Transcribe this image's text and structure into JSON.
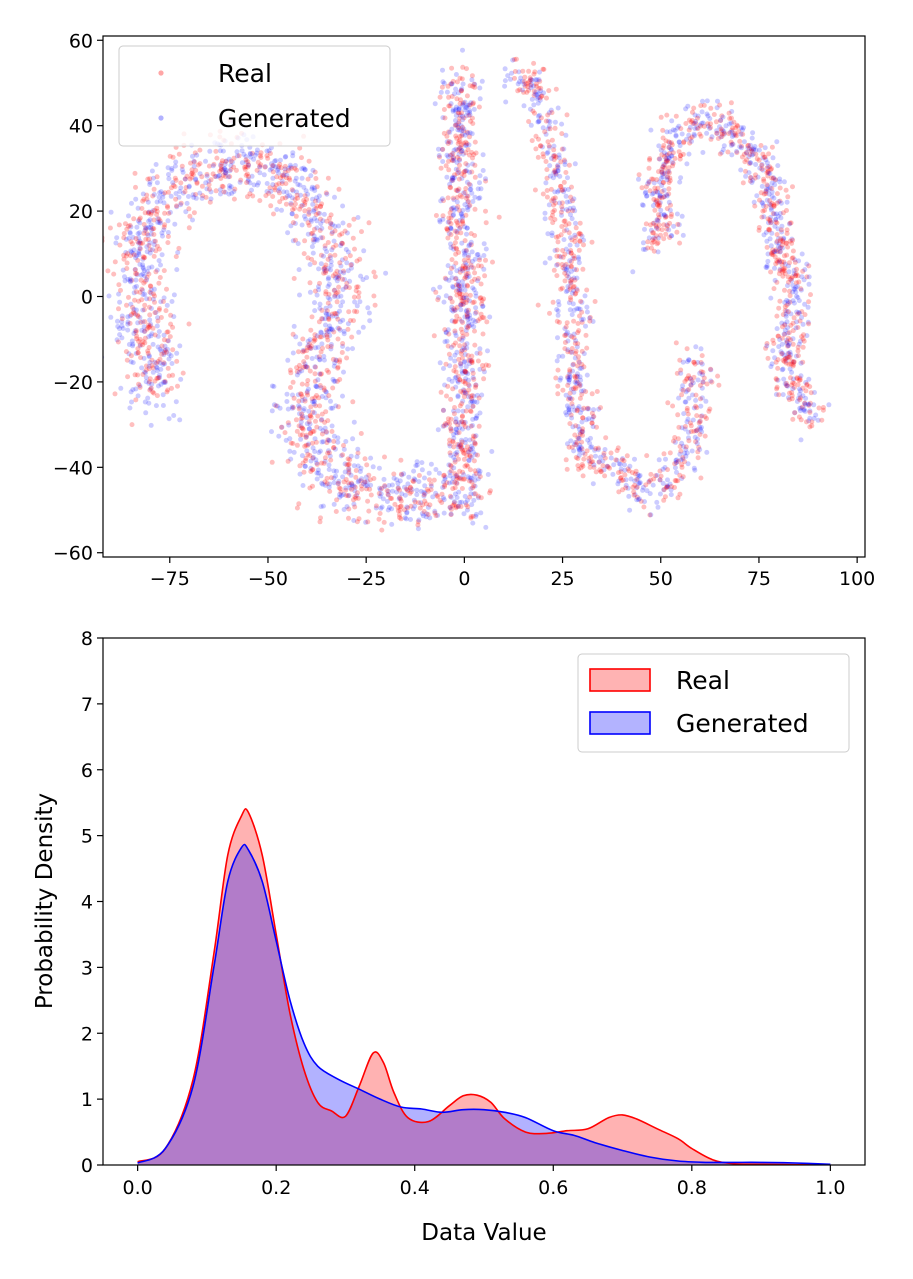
{
  "chart_data": [
    {
      "type": "scatter",
      "title": "",
      "xlabel": "",
      "ylabel": "",
      "xlim": [
        -92,
        102
      ],
      "ylim": [
        -61,
        61
      ],
      "xticks": [
        -75,
        -50,
        -25,
        0,
        25,
        50,
        75,
        100
      ],
      "yticks": [
        -60,
        -40,
        -20,
        0,
        20,
        40,
        60
      ],
      "xtick_labels": [
        "−75",
        "−50",
        "−25",
        "0",
        "25",
        "50",
        "75",
        "100"
      ],
      "ytick_labels": [
        "−60",
        "−40",
        "−20",
        "0",
        "20",
        "40",
        "60"
      ],
      "legend": {
        "position": "top-left",
        "entries": [
          "Real",
          "Generated"
        ]
      },
      "series": [
        {
          "name": "Real",
          "color": "#ff0000",
          "alpha": 0.25
        },
        {
          "name": "Generated",
          "color": "#0000ff",
          "alpha": 0.2
        }
      ],
      "clusters": [
        {
          "name": "left-arc",
          "path": [
            [
              -78,
              -24
            ],
            [
              -80,
              -15
            ],
            [
              -82,
              -5
            ],
            [
              -83,
              5
            ],
            [
              -82,
              15
            ],
            [
              -77,
              23
            ],
            [
              -70,
              28
            ],
            [
              -62,
              31
            ],
            [
              -55,
              31
            ],
            [
              -48,
              29
            ],
            [
              -42,
              25
            ],
            [
              -38,
              20
            ],
            [
              -34,
              12
            ],
            [
              -32,
              4
            ],
            [
              -33,
              -4
            ],
            [
              -36,
              -12
            ],
            [
              -39,
              -20
            ],
            [
              -41,
              -28
            ],
            [
              -39,
              -36
            ],
            [
              -33,
              -42
            ],
            [
              -25,
              -46
            ],
            [
              -18,
              -47
            ],
            [
              -10,
              -46
            ],
            [
              -4,
              -44
            ]
          ],
          "spread": 6
        },
        {
          "name": "center-column",
          "path": [
            [
              0,
              -50
            ],
            [
              2,
              -44
            ],
            [
              0,
              -37
            ],
            [
              -1,
              -30
            ],
            [
              1,
              -22
            ],
            [
              -1,
              -14
            ],
            [
              0,
              -6
            ],
            [
              -1,
              2
            ],
            [
              1,
              10
            ],
            [
              -2,
              18
            ],
            [
              0,
              26
            ],
            [
              -2,
              33
            ],
            [
              -1,
              40
            ],
            [
              0,
              47
            ],
            [
              -1,
              52
            ]
          ],
          "spread": 4
        },
        {
          "name": "right-center-column",
          "path": [
            [
              12,
              51
            ],
            [
              17,
              50
            ],
            [
              20,
              44
            ],
            [
              22,
              36
            ],
            [
              24,
              28
            ],
            [
              25,
              20
            ],
            [
              27,
              12
            ],
            [
              26,
              4
            ],
            [
              28,
              -4
            ],
            [
              27,
              -12
            ],
            [
              28,
              -20
            ],
            [
              30,
              -28
            ],
            [
              29,
              -36
            ],
            [
              33,
              -40
            ],
            [
              37,
              -38
            ],
            [
              41,
              -42
            ],
            [
              45,
              -47
            ],
            [
              50,
              -45
            ],
            [
              54,
              -41
            ],
            [
              57,
              -35
            ],
            [
              58,
              -28
            ],
            [
              59,
              -20
            ],
            [
              58,
              -14
            ]
          ],
          "spread": 3.5
        },
        {
          "name": "right-s",
          "path": [
            [
              48,
              12
            ],
            [
              50,
              18
            ],
            [
              49,
              25
            ],
            [
              51,
              32
            ],
            [
              55,
              38
            ],
            [
              60,
              42
            ],
            [
              65,
              40
            ],
            [
              70,
              36
            ],
            [
              75,
              32
            ],
            [
              78,
              24
            ],
            [
              79,
              16
            ],
            [
              82,
              8
            ],
            [
              84,
              0
            ],
            [
              83,
              -8
            ],
            [
              82,
              -16
            ],
            [
              84,
              -22
            ],
            [
              87,
              -26
            ],
            [
              89,
              -29
            ]
          ],
          "spread": 3.5
        }
      ]
    },
    {
      "type": "area",
      "title": "",
      "xlabel": "Data Value",
      "ylabel": "Probability Density",
      "xlim": [
        -0.05,
        1.05
      ],
      "ylim": [
        0,
        8
      ],
      "xticks": [
        0.0,
        0.2,
        0.4,
        0.6,
        0.8,
        1.0
      ],
      "yticks": [
        0,
        1,
        2,
        3,
        4,
        5,
        6,
        7,
        8
      ],
      "xtick_labels": [
        "0.0",
        "0.2",
        "0.4",
        "0.6",
        "0.8",
        "1.0"
      ],
      "ytick_labels": [
        "0",
        "1",
        "2",
        "3",
        "4",
        "5",
        "6",
        "7",
        "8"
      ],
      "legend": {
        "position": "top-right",
        "entries": [
          "Real",
          "Generated"
        ]
      },
      "series": [
        {
          "name": "Real",
          "color": "#ff0000",
          "fill": "#ffb3b3",
          "points": [
            [
              0.0,
              0.05
            ],
            [
              0.04,
              0.25
            ],
            [
              0.08,
              1.3
            ],
            [
              0.11,
              3.2
            ],
            [
              0.13,
              4.7
            ],
            [
              0.15,
              5.3
            ],
            [
              0.16,
              5.35
            ],
            [
              0.18,
              4.7
            ],
            [
              0.2,
              3.5
            ],
            [
              0.22,
              2.3
            ],
            [
              0.24,
              1.45
            ],
            [
              0.26,
              0.95
            ],
            [
              0.28,
              0.82
            ],
            [
              0.3,
              0.74
            ],
            [
              0.32,
              1.2
            ],
            [
              0.34,
              1.7
            ],
            [
              0.355,
              1.55
            ],
            [
              0.37,
              1.1
            ],
            [
              0.39,
              0.72
            ],
            [
              0.42,
              0.66
            ],
            [
              0.45,
              0.9
            ],
            [
              0.47,
              1.05
            ],
            [
              0.49,
              1.06
            ],
            [
              0.51,
              0.95
            ],
            [
              0.53,
              0.7
            ],
            [
              0.56,
              0.5
            ],
            [
              0.59,
              0.48
            ],
            [
              0.62,
              0.52
            ],
            [
              0.65,
              0.55
            ],
            [
              0.68,
              0.72
            ],
            [
              0.7,
              0.76
            ],
            [
              0.72,
              0.7
            ],
            [
              0.75,
              0.55
            ],
            [
              0.78,
              0.4
            ],
            [
              0.8,
              0.25
            ],
            [
              0.83,
              0.08
            ],
            [
              0.86,
              0.02
            ],
            [
              0.9,
              0.01
            ],
            [
              1.0,
              0.0
            ]
          ]
        },
        {
          "name": "Generated",
          "color": "#0000ff",
          "fill": "#b3b3ff",
          "points": [
            [
              0.0,
              0.03
            ],
            [
              0.04,
              0.25
            ],
            [
              0.08,
              1.2
            ],
            [
              0.11,
              3.0
            ],
            [
              0.13,
              4.3
            ],
            [
              0.15,
              4.82
            ],
            [
              0.16,
              4.78
            ],
            [
              0.18,
              4.3
            ],
            [
              0.2,
              3.4
            ],
            [
              0.22,
              2.5
            ],
            [
              0.24,
              1.85
            ],
            [
              0.26,
              1.5
            ],
            [
              0.29,
              1.3
            ],
            [
              0.32,
              1.15
            ],
            [
              0.35,
              1.0
            ],
            [
              0.38,
              0.88
            ],
            [
              0.41,
              0.85
            ],
            [
              0.44,
              0.8
            ],
            [
              0.47,
              0.84
            ],
            [
              0.5,
              0.84
            ],
            [
              0.53,
              0.8
            ],
            [
              0.56,
              0.72
            ],
            [
              0.6,
              0.52
            ],
            [
              0.63,
              0.45
            ],
            [
              0.66,
              0.34
            ],
            [
              0.7,
              0.22
            ],
            [
              0.74,
              0.12
            ],
            [
              0.78,
              0.06
            ],
            [
              0.82,
              0.04
            ],
            [
              0.86,
              0.04
            ],
            [
              0.9,
              0.04
            ],
            [
              0.95,
              0.03
            ],
            [
              1.0,
              0.01
            ]
          ]
        }
      ],
      "overlap_fill": "#b07cc5"
    }
  ]
}
